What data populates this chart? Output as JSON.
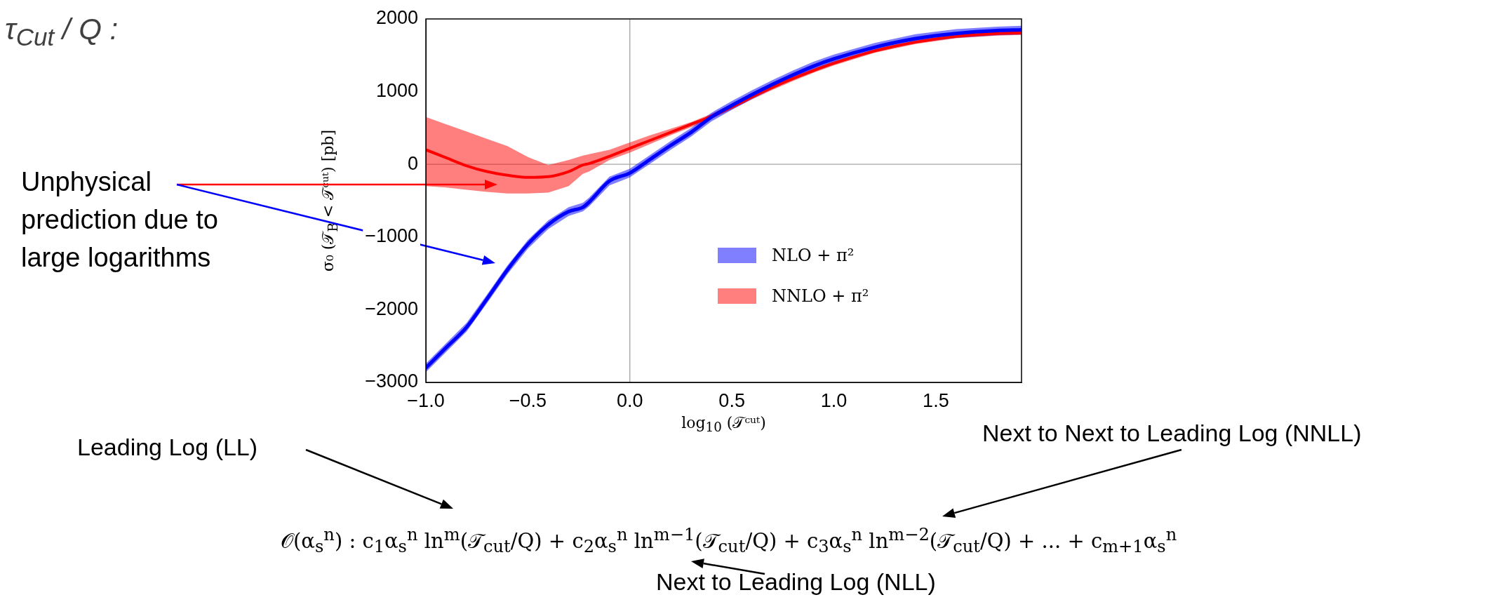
{
  "chart_data": {
    "type": "line",
    "xlabel": "log$_{10}$ (𝒯ᶜᵘᵗ)",
    "ylabel": "σ₀ (𝒯$_{B}$ < 𝒯ᶜᵘᵗ)  [pb]",
    "xlim": [
      -1,
      1.92
    ],
    "xticks": [
      {
        "value": -1,
        "label": "−1.0"
      },
      {
        "value": -0.5,
        "label": "−0.5"
      },
      {
        "value": 0,
        "label": "0.0"
      },
      {
        "value": 0.5,
        "label": "0.5"
      },
      {
        "value": 1,
        "label": "1.0"
      },
      {
        "value": 1.5,
        "label": "1.5"
      }
    ],
    "ylim": [
      -3000,
      2000
    ],
    "yticks": [
      {
        "value": -3000,
        "label": "−3000"
      },
      {
        "value": -2000,
        "label": "−2000"
      },
      {
        "value": -1000,
        "label": "−1000"
      },
      0,
      1000,
      2000
    ],
    "grid": false,
    "legend": "right",
    "marker": "none",
    "ref_lines": [
      {
        "axis": "x",
        "value": 0,
        "color": "#999999"
      },
      {
        "axis": "y",
        "value": 0,
        "color": "#a6a6a6"
      }
    ],
    "series": [
      {
        "name": "NLO + π²",
        "color": "#0000ff",
        "x": [
          -1,
          -0.9,
          -0.8,
          -0.7,
          -0.6,
          -0.5,
          -0.4,
          -0.3,
          -0.23,
          -0.2,
          -0.1,
          0,
          0.1,
          0.2,
          0.3,
          0.4,
          0.5,
          0.6,
          0.7,
          0.8,
          0.9,
          1,
          1.2,
          1.4,
          1.6,
          1.8,
          1.92
        ],
        "values": [
          -2800,
          -2520,
          -2240,
          -1850,
          -1450,
          -1100,
          -830,
          -650,
          -590,
          -520,
          -230,
          -120,
          70,
          260,
          440,
          650,
          810,
          960,
          1100,
          1230,
          1350,
          1450,
          1610,
          1730,
          1800,
          1840,
          1850
        ],
        "lower": [
          -2860,
          -2580,
          -2300,
          -1910,
          -1510,
          -1160,
          -890,
          -710,
          -648,
          -580,
          -290,
          -180,
          10,
          200,
          380,
          590,
          750,
          900,
          1040,
          1170,
          1290,
          1390,
          1550,
          1670,
          1740,
          1775,
          1785
        ],
        "upper": [
          -2740,
          -2460,
          -2180,
          -1790,
          -1390,
          -1040,
          -770,
          -590,
          -528,
          -460,
          -170,
          -60,
          130,
          320,
          500,
          710,
          870,
          1020,
          1160,
          1290,
          1410,
          1510,
          1670,
          1790,
          1860,
          1895,
          1905
        ]
      },
      {
        "name": "NNLO + π²",
        "color": "#ff0000",
        "x": [
          -1,
          -0.9,
          -0.8,
          -0.7,
          -0.6,
          -0.5,
          -0.4,
          -0.3,
          -0.23,
          -0.2,
          -0.1,
          0,
          0.1,
          0.2,
          0.3,
          0.4,
          0.5,
          0.6,
          0.7,
          0.8,
          0.9,
          1,
          1.2,
          1.4,
          1.6,
          1.8,
          1.92
        ],
        "values": [
          200,
          90,
          -20,
          -100,
          -150,
          -180,
          -170,
          -100,
          -10,
          10,
          110,
          220,
          330,
          440,
          550,
          660,
          790,
          930,
          1060,
          1180,
          1290,
          1390,
          1560,
          1680,
          1760,
          1800,
          1810
        ],
        "lower": [
          -300,
          -320,
          -350,
          -380,
          -400,
          -400,
          -390,
          -300,
          -130,
          -100,
          60,
          160,
          280,
          400,
          510,
          625,
          755,
          895,
          1025,
          1145,
          1260,
          1360,
          1535,
          1655,
          1735,
          1770,
          1780
        ],
        "upper": [
          650,
          550,
          450,
          350,
          250,
          100,
          -10,
          60,
          120,
          140,
          200,
          300,
          400,
          490,
          580,
          695,
          825,
          965,
          1095,
          1215,
          1320,
          1420,
          1585,
          1705,
          1785,
          1820,
          1830
        ]
      }
    ],
    "annotations": [
      "τ$_{Cut}$ / Q :",
      "Unphysical prediction due to large logarithms",
      "Leading Log (LL)",
      "𝒪(α$_{s}$$^{n}$) : c$_{1}$α$_{s}$$^{n}$ ln$^{m}$(𝒯$_{cut}$/Q) + c$_{2}$α$_{s}$$^{n}$ ln$^{m−1}$(𝒯$_{cut}$/Q) + c$_{3}$α$_{s}$$^{n}$ ln$^{m−2}$(𝒯$_{cut}$/Q) + ... + c$_{m+1}$α$_{s}$$^{n}$",
      "Next to Leading Log (NLL)",
      "Next to Next to Leading Log (NNLL)"
    ]
  }
}
